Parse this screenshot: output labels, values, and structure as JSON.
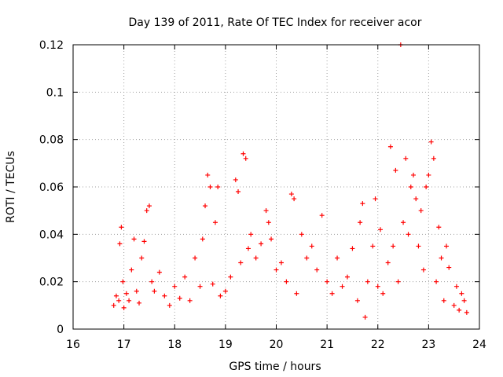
{
  "chart_data": {
    "type": "scatter",
    "title": "Day 139 of 2011, Rate Of TEC Index for receiver acor",
    "xlabel": "GPS time / hours",
    "ylabel": "ROTI / TECUs",
    "xlim": [
      16,
      24
    ],
    "ylim": [
      0,
      0.12
    ],
    "x_ticks": [
      "16",
      "17",
      "18",
      "19",
      "20",
      "21",
      "22",
      "23",
      "24"
    ],
    "y_ticks": [
      "0",
      "0.02",
      "0.04",
      "0.06",
      "0.08",
      "0.1",
      "0.12"
    ],
    "grid": true,
    "marker": "+",
    "color": "#ff0000",
    "series": [
      {
        "name": "ROTI",
        "points": [
          [
            16.8,
            0.01
          ],
          [
            16.85,
            0.014
          ],
          [
            16.9,
            0.012
          ],
          [
            16.92,
            0.036
          ],
          [
            16.95,
            0.043
          ],
          [
            16.98,
            0.02
          ],
          [
            17.0,
            0.009
          ],
          [
            17.05,
            0.015
          ],
          [
            17.1,
            0.012
          ],
          [
            17.15,
            0.025
          ],
          [
            17.2,
            0.038
          ],
          [
            17.25,
            0.016
          ],
          [
            17.3,
            0.011
          ],
          [
            17.35,
            0.03
          ],
          [
            17.4,
            0.037
          ],
          [
            17.45,
            0.05
          ],
          [
            17.5,
            0.052
          ],
          [
            17.55,
            0.02
          ],
          [
            17.6,
            0.016
          ],
          [
            17.7,
            0.024
          ],
          [
            17.8,
            0.014
          ],
          [
            17.9,
            0.01
          ],
          [
            18.0,
            0.018
          ],
          [
            18.1,
            0.013
          ],
          [
            18.2,
            0.022
          ],
          [
            18.3,
            0.012
          ],
          [
            18.4,
            0.03
          ],
          [
            18.5,
            0.018
          ],
          [
            18.55,
            0.038
          ],
          [
            18.6,
            0.052
          ],
          [
            18.65,
            0.065
          ],
          [
            18.7,
            0.06
          ],
          [
            18.75,
            0.019
          ],
          [
            18.8,
            0.045
          ],
          [
            18.85,
            0.06
          ],
          [
            18.9,
            0.014
          ],
          [
            19.0,
            0.016
          ],
          [
            19.1,
            0.022
          ],
          [
            19.2,
            0.063
          ],
          [
            19.25,
            0.058
          ],
          [
            19.3,
            0.028
          ],
          [
            19.35,
            0.074
          ],
          [
            19.4,
            0.072
          ],
          [
            19.45,
            0.034
          ],
          [
            19.5,
            0.04
          ],
          [
            19.6,
            0.03
          ],
          [
            19.7,
            0.036
          ],
          [
            19.8,
            0.05
          ],
          [
            19.85,
            0.045
          ],
          [
            19.9,
            0.038
          ],
          [
            20.0,
            0.025
          ],
          [
            20.1,
            0.028
          ],
          [
            20.2,
            0.02
          ],
          [
            20.3,
            0.057
          ],
          [
            20.35,
            0.055
          ],
          [
            20.4,
            0.015
          ],
          [
            20.5,
            0.04
          ],
          [
            20.6,
            0.03
          ],
          [
            20.7,
            0.035
          ],
          [
            20.8,
            0.025
          ],
          [
            20.9,
            0.048
          ],
          [
            21.0,
            0.02
          ],
          [
            21.1,
            0.015
          ],
          [
            21.2,
            0.03
          ],
          [
            21.3,
            0.018
          ],
          [
            21.4,
            0.022
          ],
          [
            21.5,
            0.034
          ],
          [
            21.6,
            0.012
          ],
          [
            21.65,
            0.045
          ],
          [
            21.7,
            0.053
          ],
          [
            21.75,
            0.005
          ],
          [
            21.8,
            0.02
          ],
          [
            21.9,
            0.035
          ],
          [
            21.95,
            0.055
          ],
          [
            22.0,
            0.018
          ],
          [
            22.05,
            0.042
          ],
          [
            22.1,
            0.015
          ],
          [
            22.2,
            0.028
          ],
          [
            22.25,
            0.077
          ],
          [
            22.3,
            0.035
          ],
          [
            22.35,
            0.067
          ],
          [
            22.4,
            0.02
          ],
          [
            22.45,
            0.12
          ],
          [
            22.5,
            0.045
          ],
          [
            22.55,
            0.072
          ],
          [
            22.6,
            0.04
          ],
          [
            22.65,
            0.06
          ],
          [
            22.7,
            0.065
          ],
          [
            22.75,
            0.055
          ],
          [
            22.8,
            0.035
          ],
          [
            22.85,
            0.05
          ],
          [
            22.9,
            0.025
          ],
          [
            22.95,
            0.06
          ],
          [
            23.0,
            0.065
          ],
          [
            23.05,
            0.079
          ],
          [
            23.1,
            0.072
          ],
          [
            23.15,
            0.02
          ],
          [
            23.2,
            0.043
          ],
          [
            23.25,
            0.03
          ],
          [
            23.3,
            0.012
          ],
          [
            23.35,
            0.035
          ],
          [
            23.4,
            0.026
          ],
          [
            23.5,
            0.01
          ],
          [
            23.55,
            0.018
          ],
          [
            23.6,
            0.008
          ],
          [
            23.65,
            0.015
          ],
          [
            23.7,
            0.012
          ],
          [
            23.75,
            0.007
          ]
        ]
      }
    ]
  }
}
